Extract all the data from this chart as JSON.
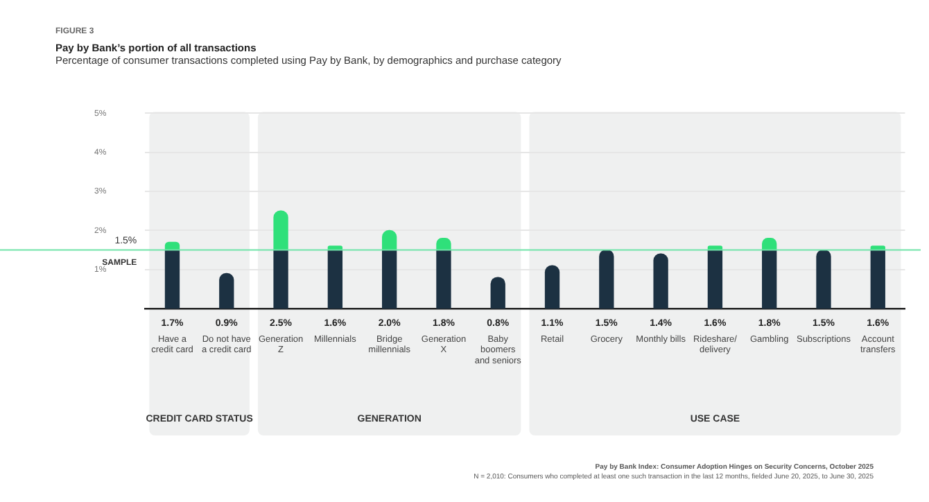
{
  "chart_data": {
    "type": "bar",
    "title": "Pay by Bank’s portion of all transactions",
    "subtitle": "Percentage of consumer transactions completed using Pay by Bank, by demographics and purchase category",
    "categories": [
      "Have a credit card",
      "Do not have a credit card",
      "Generation Z",
      "Millennials",
      "Bridge millennials",
      "Generation X",
      "Baby boomers and seniors",
      "Retail",
      "Grocery",
      "Monthly bills",
      "Rideshare/ delivery",
      "Gambling",
      "Subscriptions",
      "Account transfers"
    ],
    "stacked": true,
    "series": [
      {
        "color": "#1c3142",
        "values": [
          1.5,
          0.9,
          1.5,
          1.5,
          1.5,
          1.5,
          0.8,
          1.1,
          1.5,
          1.4,
          1.5,
          1.5,
          1.5,
          1.5
        ]
      },
      {
        "color": "#2fe07a",
        "values": [
          0.2,
          null,
          1.0,
          0.1,
          0.5,
          0.3,
          null,
          null,
          null,
          null,
          0.1,
          0.3,
          null,
          0.1
        ]
      }
    ],
    "totals": [
      "1.7%",
      "0.9%",
      "2.5%",
      "1.6%",
      "2.0%",
      "1.8%",
      "0.8%",
      "1.1%",
      "1.5%",
      "1.4%",
      "1.6%",
      "1.8%",
      "1.5%",
      "1.6%"
    ],
    "ylim": [
      0,
      5
    ],
    "yticks": [
      {
        "value": 1,
        "label": "1%"
      },
      {
        "value": 2,
        "label": "2%"
      },
      {
        "value": 3,
        "label": "3%"
      },
      {
        "value": 4,
        "label": "4%"
      },
      {
        "value": 5,
        "label": "5%"
      }
    ],
    "grid": "y",
    "ref_lines": [
      {
        "axis": "y",
        "value": 1.5,
        "label": "1.5%",
        "color": "#6fe3a8"
      }
    ],
    "bands": [
      {
        "axis": "x",
        "from": "Have a credit card",
        "to": "Do not have a credit card",
        "label": "CREDIT CARD STATUS",
        "color": "#eff0f0"
      },
      {
        "axis": "x",
        "from": "Generation Z",
        "to": "Baby boomers and seniors",
        "label": "GENERATION",
        "color": "#eff0f0"
      },
      {
        "axis": "x",
        "from": "Retail",
        "to": "Account transfers",
        "label": "USE CASE",
        "color": "#eff0f0"
      }
    ],
    "annotations": [
      "FIGURE 3",
      {
        "text": "SAMPLE",
        "y": 1.5
      },
      "Pay by Bank Index: Consumer Adoption Hinges on Security Concerns, October 2025",
      "N = 2,010: Consumers who completed at least one such transaction in the last 12 months, fielded June 20, 2025, to June 30, 2025"
    ]
  }
}
